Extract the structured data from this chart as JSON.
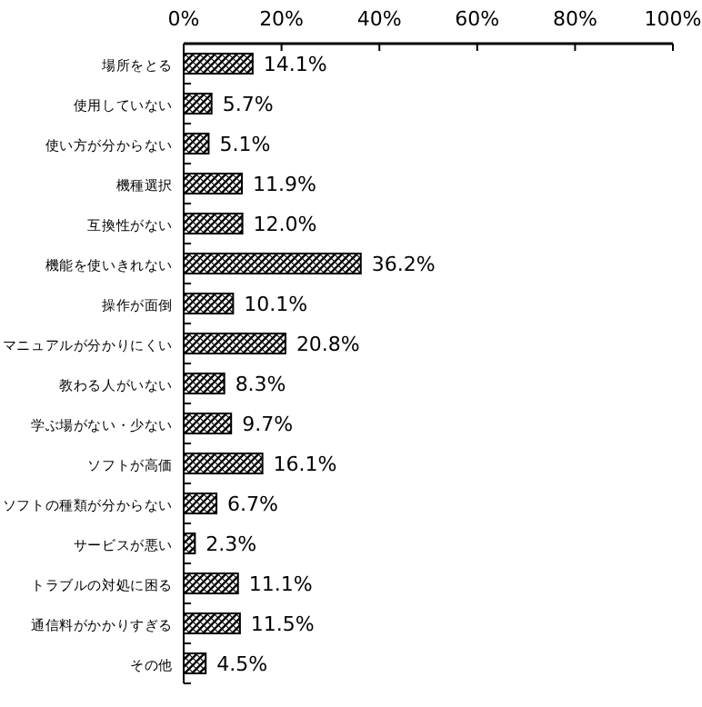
{
  "chart_data": {
    "type": "bar",
    "orientation": "horizontal",
    "categories": [
      "場所をとる",
      "使用していない",
      "使い方が分からない",
      "機種選択",
      "互換性がない",
      "機能を使いきれない",
      "操作が面倒",
      "マニュアルが分かりにくい",
      "教わる人がいない",
      "学ぶ場がない・少ない",
      "ソフトが高価",
      "ソフトの種類が分からない",
      "サービスが悪い",
      "トラブルの対処に困る",
      "通信料がかかりすぎる",
      "その他"
    ],
    "values": [
      14.1,
      5.7,
      5.1,
      11.9,
      12.0,
      36.2,
      10.1,
      20.8,
      8.3,
      9.7,
      16.1,
      6.7,
      2.3,
      11.1,
      11.5,
      4.5
    ],
    "value_labels": [
      "14.1%",
      "5.7%",
      "5.1%",
      "11.9%",
      "12.0%",
      "36.2%",
      "10.1%",
      "20.8%",
      "8.3%",
      "9.7%",
      "16.1%",
      "6.7%",
      "2.3%",
      "11.1%",
      "11.5%",
      "4.5%"
    ],
    "color": "#000000",
    "xlim": [
      0,
      100
    ],
    "xticks": [
      {
        "value": 0,
        "label": "0%"
      },
      {
        "value": 20,
        "label": "20%"
      },
      {
        "value": 40,
        "label": "40%"
      },
      {
        "value": 60,
        "label": "60%"
      },
      {
        "value": 80,
        "label": "80%"
      },
      {
        "value": 100,
        "label": "100%"
      }
    ],
    "grid": false
  }
}
